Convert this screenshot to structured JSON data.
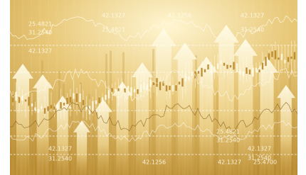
{
  "labels": [
    "25.4821",
    "31.2540",
    "42.1327",
    "42.1327",
    "25.4821",
    "42.1256",
    "42.1327",
    "31.2540",
    "25.4821",
    "31.2540",
    "42.1327",
    "31.2540",
    "42.1256",
    "42.1327",
    "25.4700",
    "42.1327",
    "31.2540"
  ]
}
